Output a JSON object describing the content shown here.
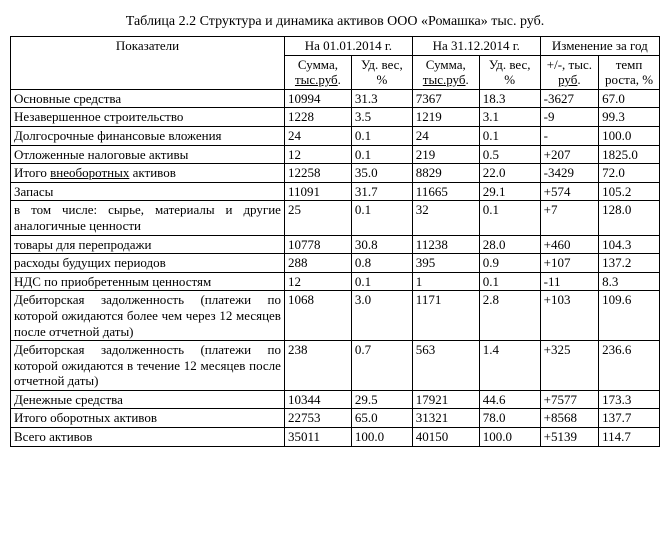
{
  "title": "Таблица 2.2 Структура и динамика активов ООО «Ромашка» тыс. руб.",
  "headers": {
    "indicator": "Показатели",
    "date1": "На 01.01.2014 г.",
    "date2": "На 31.12.2014 г.",
    "change": "Изменение за год",
    "sum_a": "Сумма,",
    "sum_unit_a": "тыс.руб",
    "sum_dot_a": ".",
    "wt": "Уд. вес, %",
    "sum_b": "Сумма,",
    "sum_unit_b": "тыс.руб",
    "sum_dot_b": ".",
    "pm": "+/-, тыс.",
    "pm_unit": "руб",
    "pm_dot": ".",
    "growth": "темп роста, %"
  },
  "rows": [
    {
      "label": "Основные средства",
      "a": "10994",
      "b": "31.3",
      "c": "7367",
      "d": "18.3",
      "e": "-3627",
      "f": "67.0"
    },
    {
      "label": "Незавершенное строительство",
      "a": "1228",
      "b": "3.5",
      "c": "1219",
      "d": "3.1",
      "e": "-9",
      "f": "99.3"
    },
    {
      "label": "Долгосрочные финансовые вложения",
      "a": "24",
      "b": "0.1",
      "c": "24",
      "d": "0.1",
      "e": "-",
      "f": "100.0"
    },
    {
      "label": "Отложенные налоговые активы",
      "a": "12",
      "b": "0.1",
      "c": "219",
      "d": "0.5",
      "e": "+207",
      "f": "1825.0"
    },
    {
      "label_pre": "Итого ",
      "label_u": "внеоборотных",
      "label_post": " активов",
      "a": "12258",
      "b": "35.0",
      "c": "8829",
      "d": "22.0",
      "e": "-3429",
      "f": "72.0"
    },
    {
      "label": "Запасы",
      "a": "11091",
      "b": "31.7",
      "c": "11665",
      "d": "29.1",
      "e": "+574",
      "f": "105.2"
    },
    {
      "label": "в том числе: сырье, материалы и другие аналогичные ценности",
      "just": true,
      "a": "25",
      "b": "0.1",
      "c": "32",
      "d": "0.1",
      "e": "+7",
      "f": "128.0"
    },
    {
      "label": "товары для перепродажи",
      "a": "10778",
      "b": "30.8",
      "c": "11238",
      "d": "28.0",
      "e": "+460",
      "f": "104.3"
    },
    {
      "label": "расходы будущих периодов",
      "a": "288",
      "b": "0.8",
      "c": "395",
      "d": "0.9",
      "e": "+107",
      "f": "137.2"
    },
    {
      "label": "НДС по приобретенным ценностям",
      "a": "12",
      "b": "0.1",
      "c": "1",
      "d": "0.1",
      "e": "-11",
      "f": "8.3"
    },
    {
      "label": "Дебиторская задолженность (платежи по которой ожидаются более чем через 12 месяцев после отчетной даты)",
      "just": true,
      "a": "1068",
      "b": "3.0",
      "c": "1171",
      "d": "2.8",
      "e": "+103",
      "f": "109.6"
    },
    {
      "label": "Дебиторская задолженность (платежи по которой ожидаются в течение 12 месяцев после отчетной даты)",
      "just": true,
      "a": "238",
      "b": "0.7",
      "c": "563",
      "d": "1.4",
      "e": "+325",
      "f": "236.6"
    },
    {
      "label": "Денежные средства",
      "a": "10344",
      "b": "29.5",
      "c": "17921",
      "d": "44.6",
      "e": "+7577",
      "f": "173.3"
    },
    {
      "label": "Итого оборотных активов",
      "a": "22753",
      "b": "65.0",
      "c": "31321",
      "d": "78.0",
      "e": "+8568",
      "f": "137.7"
    },
    {
      "label": "Всего активов",
      "a": "35011",
      "b": "100.0",
      "c": "40150",
      "d": "100.0",
      "e": "+5139",
      "f": "114.7"
    }
  ]
}
